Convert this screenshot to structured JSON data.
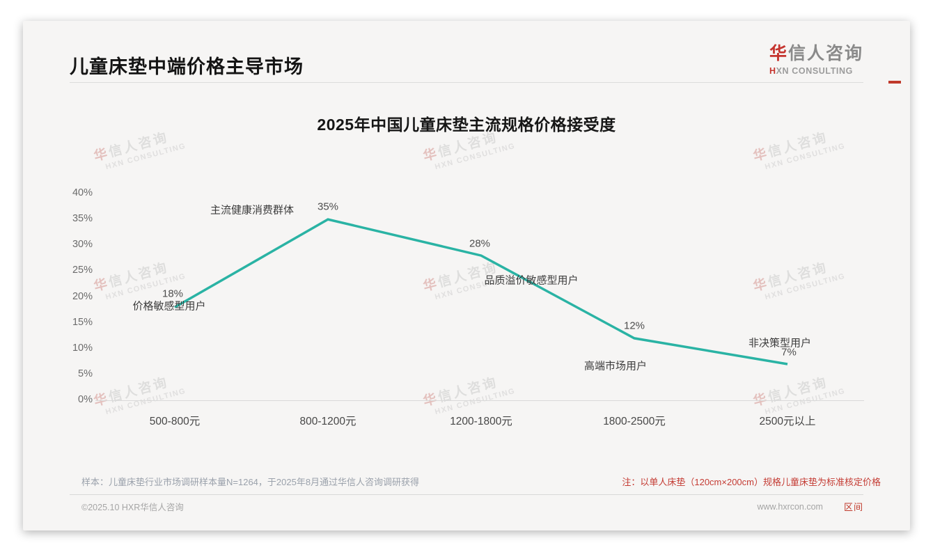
{
  "header": {
    "title": "儿童床垫中端价格主导市场",
    "logo": {
      "cn_first": "华",
      "cn_rest": "信人咨询",
      "en_first": "H",
      "en_rest": "XN CONSULTING"
    }
  },
  "chart_data": {
    "type": "line",
    "title": "2025年中国儿童床垫主流规格价格接受度",
    "categories": [
      "500-800元",
      "800-1200元",
      "1200-1800元",
      "1800-2500元",
      "2500元以上"
    ],
    "values": [
      18,
      35,
      28,
      12,
      7
    ],
    "value_labels": [
      "18%",
      "35%",
      "28%",
      "12%",
      "7%"
    ],
    "point_annotations": [
      "价格敏感型用户",
      "主流健康消费群体",
      "品质溢价敏感型用户",
      "高端市场用户",
      "非决策型用户"
    ],
    "xlabel": "",
    "ylabel": "",
    "ylim": [
      0,
      40
    ],
    "ytick_step": 5,
    "ytick_labels": [
      "0%",
      "5%",
      "10%",
      "15%",
      "20%",
      "25%",
      "30%",
      "35%",
      "40%"
    ],
    "line_color": "#2ab3a4",
    "grid": false,
    "legend": "none"
  },
  "watermark": {
    "cn_first": "华",
    "cn_rest": "信人咨询",
    "en": "HXN CONSULTING"
  },
  "footer": {
    "sample_note": "样本：儿童床垫行业市场调研样本量N=1264，于2025年8月通过华信人咨询调研获得",
    "price_note": "注：以单人床垫（120cm×200cm）规格儿童床垫为标准核定价格",
    "copyright": "©2025.10 HXR华信人咨询",
    "website": "www.hxrcon.com",
    "stamp": "区间"
  }
}
